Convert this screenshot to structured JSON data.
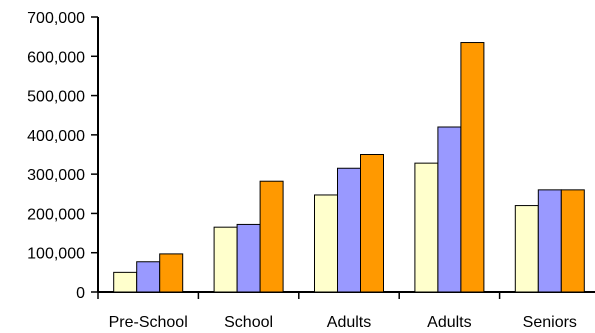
{
  "chart_data": {
    "type": "bar",
    "title": "",
    "xlabel": "",
    "ylabel": "",
    "categories": [
      "Pre-School",
      "School",
      "Adults",
      "Adults",
      "Seniors"
    ],
    "series": [
      {
        "color": "#FFFFCC",
        "values": [
          50000,
          165000,
          247000,
          328000,
          220000
        ]
      },
      {
        "color": "#9999FF",
        "values": [
          77000,
          172000,
          315000,
          420000,
          260000
        ]
      },
      {
        "color": "#FF9900",
        "values": [
          97000,
          282000,
          350000,
          635000,
          260000
        ]
      }
    ],
    "ylim": [
      0,
      700000
    ],
    "ytick_labels": [
      "0",
      "100,000",
      "200,000",
      "300,000",
      "400,000",
      "500,000",
      "600,000",
      "700,000"
    ],
    "grid": false,
    "legend": "none"
  }
}
